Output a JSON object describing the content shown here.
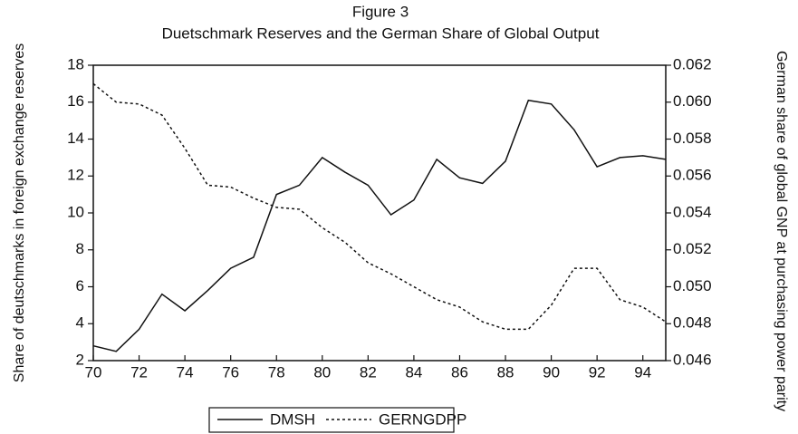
{
  "chart_data": {
    "type": "line",
    "title": "Figure 3",
    "subtitle": "Duetschmark Reserves and the German Share of Global Output",
    "y_label": "Share of deutschmarks in foreign exchange reserves",
    "y2_label": "German share of global GNP at purchasing power parity",
    "x": [
      70,
      71,
      72,
      73,
      74,
      75,
      76,
      77,
      78,
      79,
      80,
      81,
      82,
      83,
      84,
      85,
      86,
      87,
      88,
      89,
      90,
      91,
      92,
      93,
      94,
      95
    ],
    "xlim": [
      70,
      95
    ],
    "xticks": [
      70,
      72,
      74,
      76,
      78,
      80,
      82,
      84,
      86,
      88,
      90,
      92,
      94
    ],
    "ylim": [
      2,
      18
    ],
    "yticks": [
      2,
      4,
      6,
      8,
      10,
      12,
      14,
      16,
      18
    ],
    "y2lim": [
      0.046,
      0.062
    ],
    "y2ticks": [
      0.046,
      0.048,
      {
        "value": 0.05,
        "label": "0.050"
      },
      0.052,
      0.054,
      0.056,
      0.058,
      {
        "value": 0.06,
        "label": "0.060"
      },
      0.062
    ],
    "legend": "bottom",
    "series": [
      {
        "name": "DMSH",
        "color": "#111111",
        "dash": "solid",
        "values": [
          2.8,
          2.5,
          3.7,
          5.6,
          4.7,
          5.8,
          7.0,
          7.6,
          11.0,
          11.5,
          13.0,
          12.2,
          11.5,
          9.9,
          10.7,
          12.9,
          11.9,
          11.6,
          12.8,
          16.1,
          15.9,
          14.5,
          12.5,
          13.0,
          13.1,
          12.9
        ]
      },
      {
        "name": "GERNGDPP",
        "color": "#111111",
        "dash": "dashed",
        "axis": "y2",
        "values": [
          0.061,
          0.06,
          0.0599,
          0.0593,
          0.0575,
          0.0555,
          0.0554,
          0.0548,
          0.0543,
          0.0542,
          0.0532,
          0.0524,
          0.0513,
          0.0507,
          0.05,
          0.0493,
          0.0489,
          0.0481,
          0.0477,
          0.0477,
          0.049,
          0.051,
          0.051,
          0.0493,
          0.0489,
          0.0481
        ]
      }
    ]
  }
}
